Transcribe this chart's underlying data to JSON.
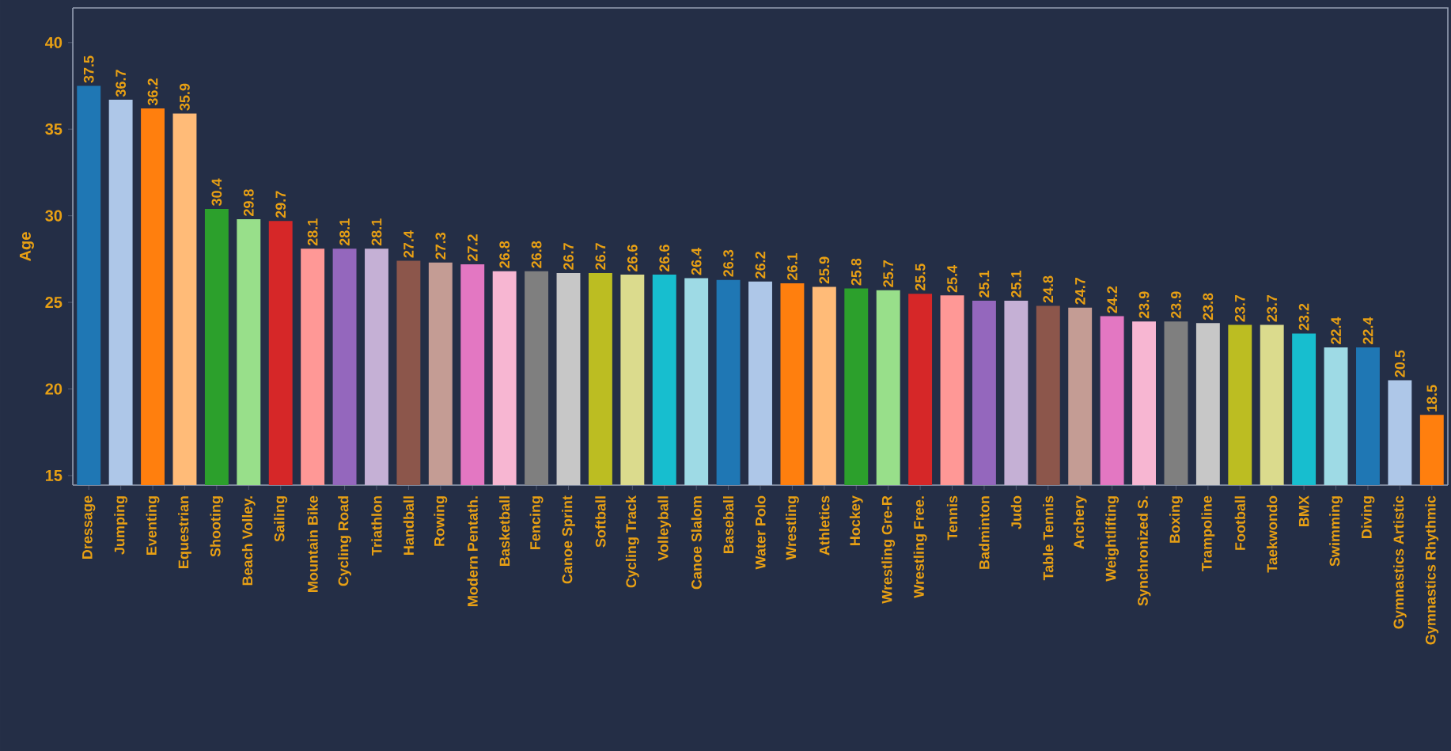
{
  "chart_data": {
    "type": "bar",
    "ylabel": "Age",
    "categories": [
      "Dressage",
      "Jumping",
      "Eventing",
      "Equestrian",
      "Shooting",
      "Beach Volley.",
      "Sailing",
      "Mountain Bike",
      "Cycling Road",
      "Triathlon",
      "Handball",
      "Rowing",
      "Modern Pentath.",
      "Basketball",
      "Fencing",
      "Canoe Sprint",
      "Softball",
      "Cycling Track",
      "Volleyball",
      "Canoe Slalom",
      "Baseball",
      "Water Polo",
      "Wrestling",
      "Athletics",
      "Hockey",
      "Wrestling Gre-R",
      "Wrestling Free.",
      "Tennis",
      "Badminton",
      "Judo",
      "Table Tennis",
      "Archery",
      "Weightlifting",
      "Synchronized S.",
      "Boxing",
      "Trampoline",
      "Football",
      "Taekwondo",
      "BMX",
      "Swimming",
      "Diving",
      "Gymnastics Artistic",
      "Gymnastics Rhythmic"
    ],
    "values": [
      37.5,
      36.7,
      36.2,
      35.9,
      30.4,
      29.8,
      29.7,
      28.1,
      28.1,
      28.1,
      27.4,
      27.3,
      27.2,
      26.8,
      26.8,
      26.7,
      26.7,
      26.6,
      26.6,
      26.4,
      26.3,
      26.2,
      26.1,
      25.9,
      25.8,
      25.7,
      25.5,
      25.4,
      25.1,
      25.1,
      24.8,
      24.7,
      24.2,
      23.9,
      23.9,
      23.8,
      23.7,
      23.7,
      23.2,
      22.4,
      22.4,
      20.5,
      18.5
    ],
    "colors": [
      "#1f77b4",
      "#aec7e8",
      "#ff7f0e",
      "#ffbb78",
      "#2ca02c",
      "#98df8a",
      "#d62728",
      "#ff9896",
      "#9467bd",
      "#c5b0d5",
      "#8c564b",
      "#c49c94",
      "#e377c2",
      "#f7b6d2",
      "#7f7f7f",
      "#c7c7c7",
      "#bcbd22",
      "#dbdb8d",
      "#17becf",
      "#9edae5",
      "#1f77b4",
      "#aec7e8",
      "#ff7f0e",
      "#ffbb78",
      "#2ca02c",
      "#98df8a",
      "#d62728",
      "#ff9896",
      "#9467bd",
      "#c5b0d5",
      "#8c564b",
      "#c49c94",
      "#e377c2",
      "#f7b6d2",
      "#7f7f7f",
      "#c7c7c7",
      "#bcbd22",
      "#dbdb8d",
      "#17becf",
      "#9edae5",
      "#1f77b4",
      "#aec7e8",
      "#ff7f0e"
    ],
    "ylim": [
      14.45,
      42
    ],
    "yticks": [
      15,
      20,
      25,
      30,
      35,
      40
    ],
    "data_labels": true
  }
}
